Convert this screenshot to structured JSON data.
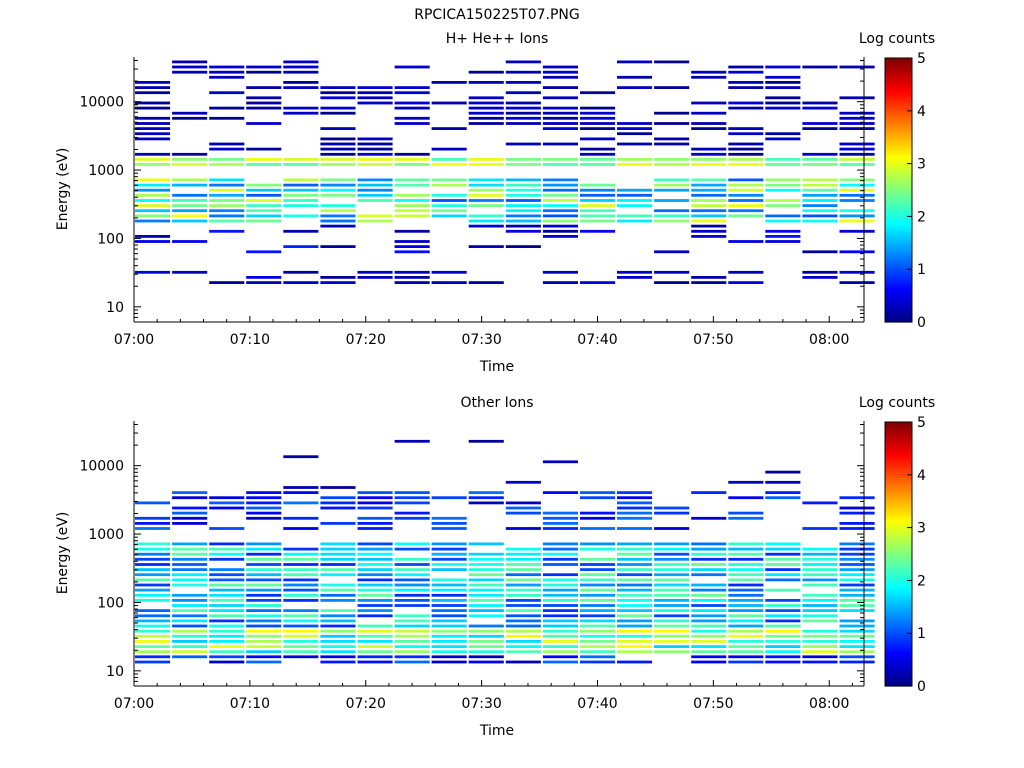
{
  "page_title": "RPCICA150225T07.PNG",
  "colors": {
    "background": "#ffffff",
    "axis": "#000000",
    "colormap": "jet"
  },
  "colorbar": {
    "label": "Log counts",
    "ticks": [
      "0",
      "1",
      "2",
      "3",
      "4",
      "5"
    ],
    "range": [
      0,
      5
    ]
  },
  "chart_data": [
    {
      "type": "heatmap",
      "title": "H+ He++ Ions",
      "xlabel": "Time",
      "ylabel": "Energy (eV)",
      "x_ticks": [
        "07:00",
        "07:10",
        "07:20",
        "07:30",
        "07:40",
        "07:50",
        "08:00"
      ],
      "x_range_minutes": [
        0,
        63
      ],
      "y_ticks": [
        "10",
        "100",
        "1000",
        "10000"
      ],
      "y_scale": "log",
      "y_range": [
        6,
        45000
      ],
      "time_bins_minutes": [
        0,
        3.2,
        6.4,
        9.6,
        12.8,
        16,
        19.2,
        22.4,
        25.6,
        28.8,
        32,
        35.2,
        38.4,
        41.6,
        44.8,
        48,
        51.2,
        54.4,
        57.6,
        60.8
      ],
      "color_scale": "Log counts",
      "description_bands": [
        {
          "energy_eV": [
            1100,
            1500
          ],
          "log_counts": 2.8
        },
        {
          "energy_eV": [
            150,
            700
          ],
          "log_counts": 2.0
        },
        {
          "energy_eV": [
            20,
            30
          ],
          "log_counts": 0.4
        }
      ]
    },
    {
      "type": "heatmap",
      "title": "Other Ions",
      "xlabel": "Time",
      "ylabel": "Energy (eV)",
      "x_ticks": [
        "07:00",
        "07:10",
        "07:20",
        "07:30",
        "07:40",
        "07:50",
        "08:00"
      ],
      "x_range_minutes": [
        0,
        63
      ],
      "y_ticks": [
        "10",
        "100",
        "1000",
        "10000"
      ],
      "y_scale": "log",
      "y_range": [
        6,
        45000
      ],
      "time_bins_minutes": [
        0,
        3.2,
        6.4,
        9.6,
        12.8,
        16,
        19.2,
        22.4,
        25.6,
        28.8,
        32,
        35.2,
        38.4,
        41.6,
        44.8,
        48,
        51.2,
        54.4,
        57.6,
        60.8
      ],
      "color_scale": "Log counts",
      "description_bands": [
        {
          "energy_eV": [
            17,
            40
          ],
          "log_counts": 2.6
        },
        {
          "energy_eV": [
            40,
            700
          ],
          "log_counts": 1.7
        },
        {
          "energy_eV": [
            1000,
            4000
          ],
          "log_counts": 0.8
        }
      ]
    }
  ]
}
